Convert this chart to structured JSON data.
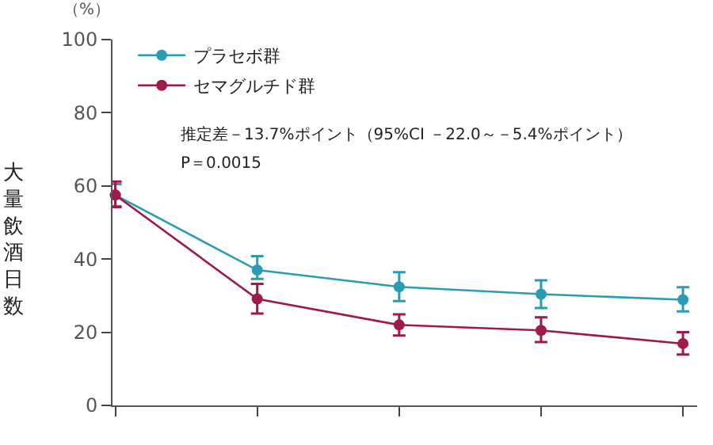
{
  "chart_data": {
    "type": "line",
    "ylabel": "大量飲酒日数",
    "categories": [
      null,
      null,
      null,
      null,
      null
    ],
    "series": [
      {
        "name": "プラセボ群",
        "color": "#2a9db5",
        "values": [
          57.5,
          37,
          32.4,
          30.4,
          28.9
        ],
        "errors": [
          [
            54.5,
            60.5
          ],
          [
            34.6,
            40.8
          ],
          [
            28.5,
            36.4
          ],
          [
            26.6,
            34.2
          ],
          [
            25.7,
            32.3
          ]
        ]
      },
      {
        "name": "セマグルチド群",
        "color": "#9e1a4a",
        "values": [
          57.5,
          29.1,
          22,
          20.5,
          16.9
        ],
        "errors": [
          [
            54.2,
            61.2
          ],
          [
            25.1,
            33.2
          ],
          [
            19.1,
            24.9
          ],
          [
            17.3,
            24.1
          ],
          [
            13.9,
            20
          ]
        ]
      }
    ],
    "ylim": [
      0,
      100
    ],
    "yticks": [
      0,
      20,
      40,
      60,
      80,
      100
    ],
    "annotations": [
      "（%）",
      "推定差－13.7%ポイント（95%CI －22.0～－5.4%ポイント）",
      "P＝0.0015"
    ],
    "legend": "top left",
    "marker": "circle",
    "line_style": "solid"
  }
}
